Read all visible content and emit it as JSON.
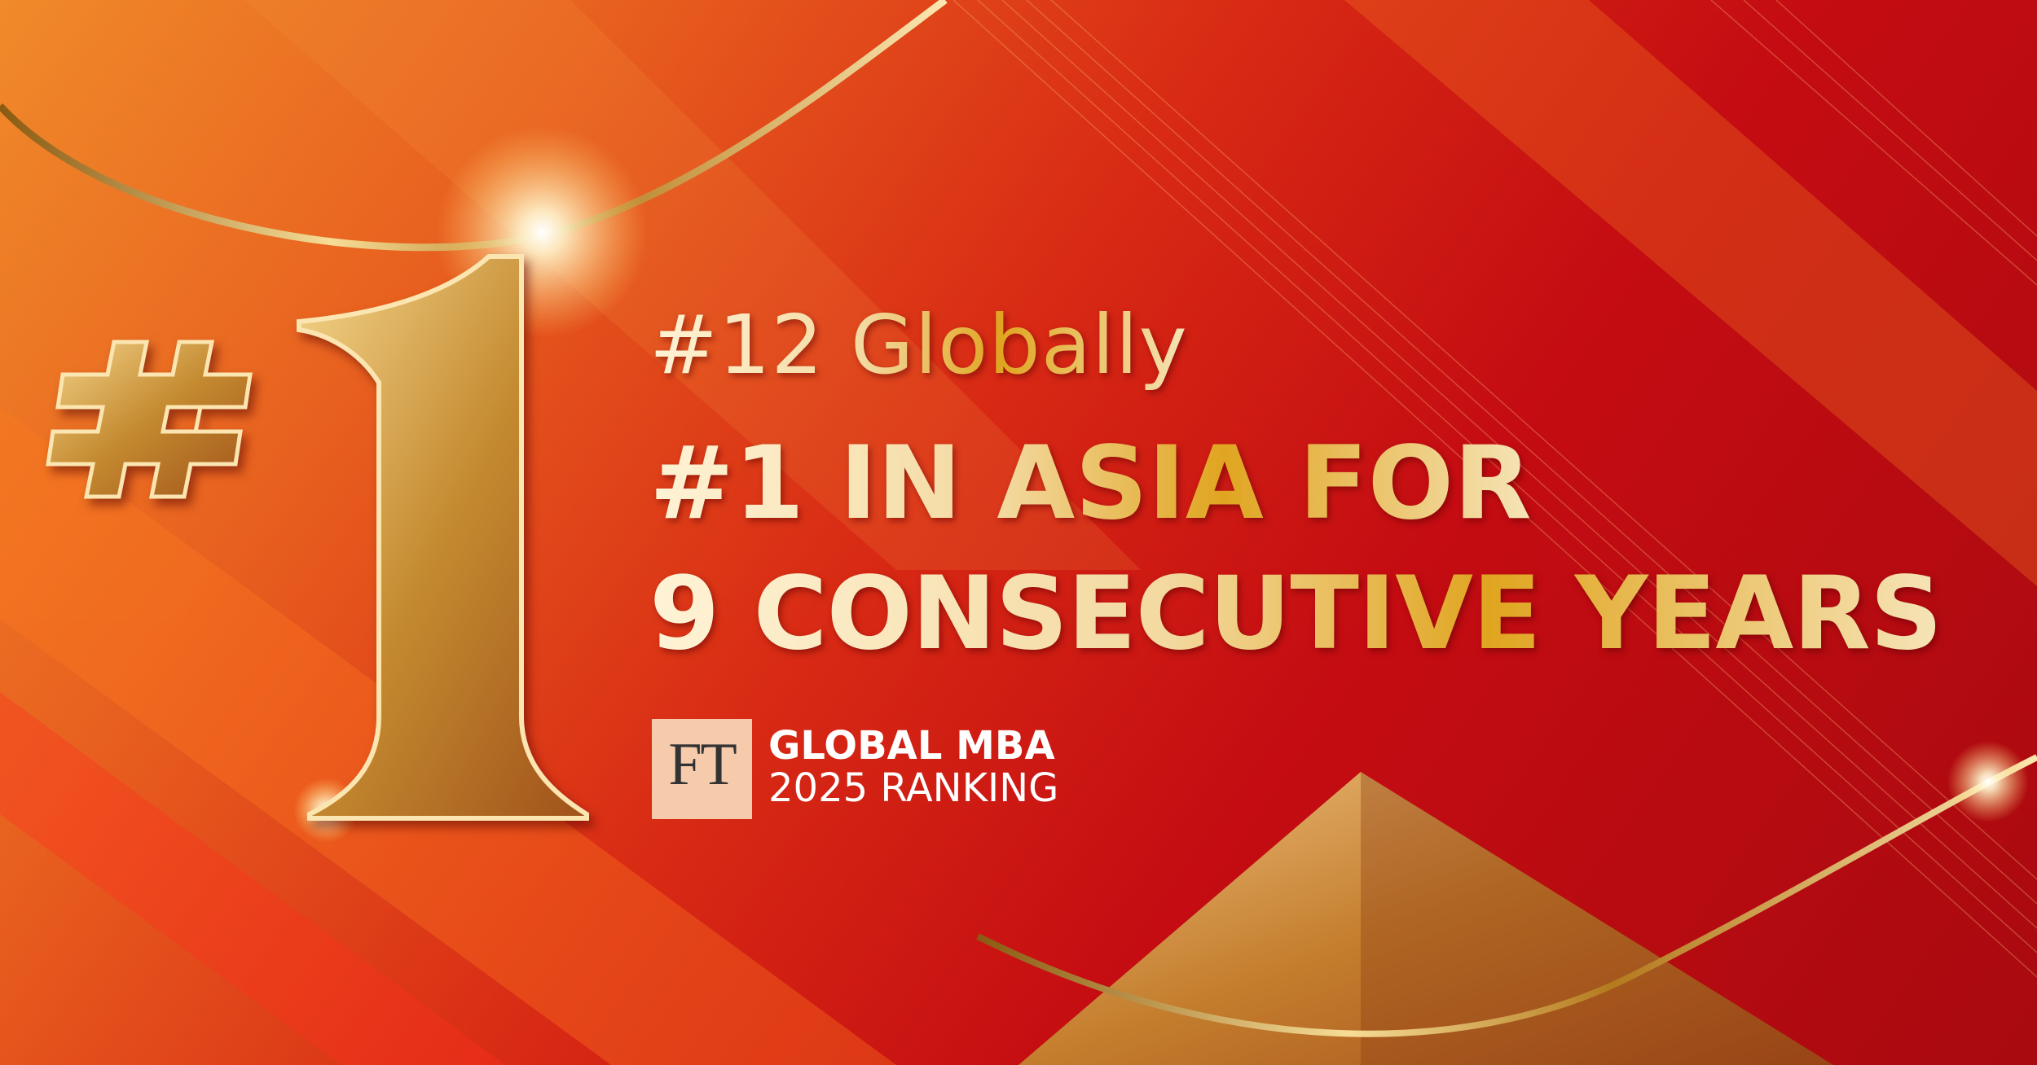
{
  "banner": {
    "big_mark": "#1",
    "headline_small": "#12 Globally",
    "headline_line1": "#1 IN ASIA FOR",
    "headline_line2": "9 CONSECUTIVE YEARS",
    "logo": {
      "text": "FT",
      "color": "#f5cbac"
    },
    "ranking_title": "GLOBAL MBA",
    "ranking_subtitle": "2025 RANKING"
  },
  "colors": {
    "background": "#d82a14",
    "gold": "#e0a520"
  }
}
